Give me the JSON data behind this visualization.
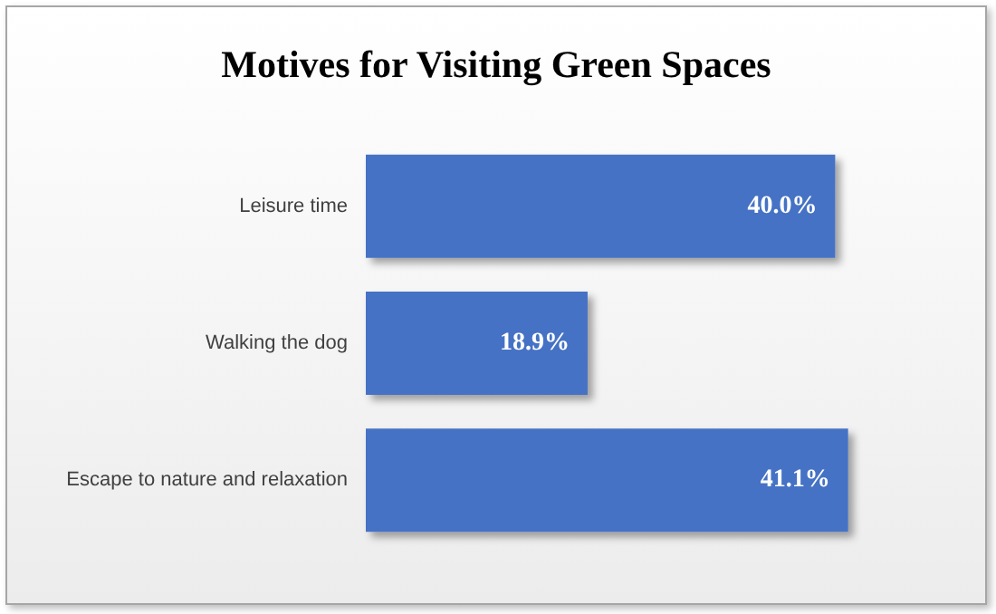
{
  "chart_data": {
    "type": "bar",
    "orientation": "horizontal",
    "title": "Motives for Visiting Green Spaces",
    "categories": [
      "Leisure time",
      "Walking the dog",
      "Escape to nature and relaxation"
    ],
    "values": [
      40.0,
      18.9,
      41.1
    ],
    "value_labels": [
      "40.0%",
      "18.9%",
      "41.1%"
    ],
    "color": "#4472c4"
  }
}
